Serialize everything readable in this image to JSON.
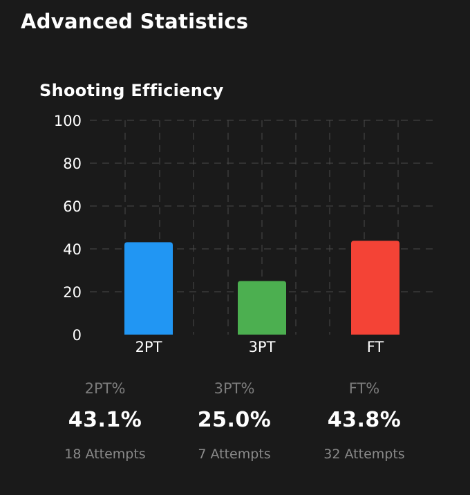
{
  "header": {
    "title": "Advanced Statistics"
  },
  "colors": {
    "background": "#1a1a1a",
    "grid": "#4a4a4a",
    "axis_text": "#ffffff",
    "label_muted": "#7c7c7c"
  },
  "chart_data": {
    "type": "bar",
    "title": "Shooting Efficiency",
    "xlabel": "",
    "ylabel": "",
    "categories": [
      "2PT",
      "3PT",
      "FT"
    ],
    "values": [
      43.1,
      25.0,
      43.8
    ],
    "colors": [
      "#2196f3",
      "#4caf50",
      "#f44336"
    ],
    "ylim": [
      0,
      100
    ],
    "yticks": [
      0,
      20,
      40,
      60,
      80,
      100
    ],
    "grid": true
  },
  "stats": [
    {
      "label": "2PT%",
      "value": "43.1%",
      "attempts": "18 Attempts"
    },
    {
      "label": "3PT%",
      "value": "25.0%",
      "attempts": "7 Attempts"
    },
    {
      "label": "FT%",
      "value": "43.8%",
      "attempts": "32 Attempts"
    }
  ]
}
